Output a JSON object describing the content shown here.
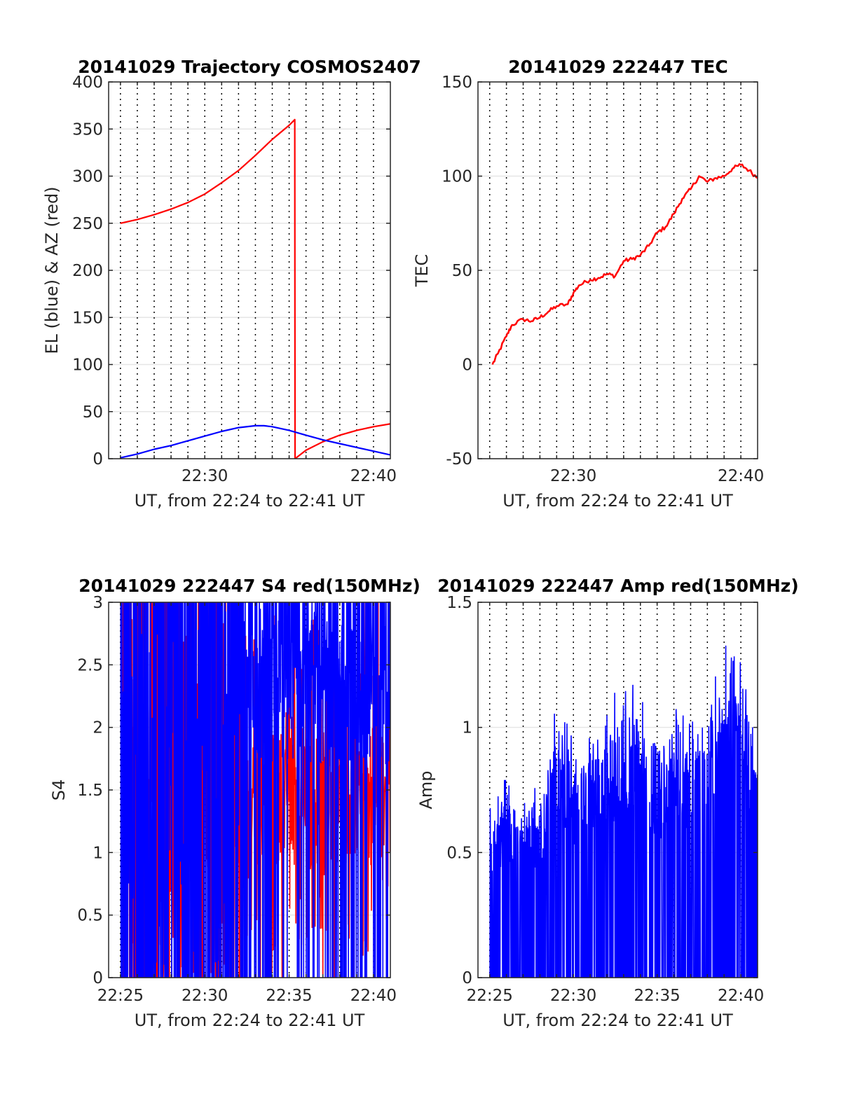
{
  "chart_data": [
    {
      "type": "line",
      "title": "20141029 Trajectory COSMOS2407",
      "xlabel": "UT, from 22:24 to 22:41 UT",
      "ylabel": "EL (blue) & AZ (red)",
      "xlim": [
        "22:24:18",
        "22:41:00"
      ],
      "ylim": [
        0,
        400
      ],
      "xticks": [
        "22:30",
        "22:40"
      ],
      "yticks": [
        0,
        50,
        100,
        150,
        200,
        250,
        300,
        350,
        400
      ],
      "grid": true,
      "series": [
        {
          "color": "#ff0000",
          "x": [
            "22:25:00",
            "22:26:00",
            "22:27:00",
            "22:28:00",
            "22:29:00",
            "22:30:00",
            "22:31:00",
            "22:32:00",
            "22:33:00",
            "22:34:00",
            "22:35:00",
            "22:35:20",
            "22:35:21",
            "22:36:00",
            "22:37:00",
            "22:38:00",
            "22:39:00",
            "22:40:00",
            "22:41:00"
          ],
          "values": [
            250,
            254,
            259,
            265,
            272,
            281,
            293,
            306,
            322,
            339,
            354,
            360,
            0,
            9,
            18,
            25,
            30,
            34,
            37
          ]
        },
        {
          "color": "#0000ff",
          "x": [
            "22:25:00",
            "22:26:00",
            "22:27:00",
            "22:28:00",
            "22:29:00",
            "22:30:00",
            "22:31:00",
            "22:32:00",
            "22:33:00",
            "22:33:30",
            "22:34:00",
            "22:35:00",
            "22:36:00",
            "22:37:00",
            "22:38:00",
            "22:39:00",
            "22:40:00",
            "22:41:00"
          ],
          "values": [
            1,
            5,
            10,
            14,
            19,
            24,
            29,
            33,
            35,
            35,
            34,
            30,
            25,
            20,
            16,
            12,
            8,
            4
          ]
        }
      ]
    },
    {
      "type": "line",
      "title": "20141029 222447 TEC",
      "xlabel": "UT, from 22:24 to 22:41 UT",
      "ylabel": "TEC",
      "xlim": [
        "22:24:18",
        "22:41:00"
      ],
      "ylim": [
        -50,
        150
      ],
      "xticks": [
        "22:30",
        "22:40"
      ],
      "yticks": [
        -50,
        0,
        50,
        100,
        150
      ],
      "grid": true,
      "series": [
        {
          "color": "#ff0000",
          "x": [
            "22:25:10",
            "22:25:30",
            "22:26:00",
            "22:26:20",
            "22:27:00",
            "22:27:30",
            "22:28:00",
            "22:28:30",
            "22:29:00",
            "22:29:40",
            "22:30:00",
            "22:30:20",
            "22:31:00",
            "22:31:30",
            "22:32:00",
            "22:32:30",
            "22:33:00",
            "22:33:30",
            "22:34:00",
            "22:34:30",
            "22:35:00",
            "22:35:30",
            "22:36:00",
            "22:36:30",
            "22:37:00",
            "22:37:30",
            "22:38:00",
            "22:38:30",
            "22:39:00",
            "22:39:30",
            "22:40:00",
            "22:40:30",
            "22:41:00"
          ],
          "values": [
            0,
            6,
            15,
            21,
            24,
            23,
            25,
            28,
            31,
            32,
            38,
            42,
            45,
            46,
            48,
            47,
            55,
            56,
            58,
            63,
            70,
            73,
            80,
            88,
            93,
            100,
            97,
            99,
            100,
            104,
            106,
            103,
            99
          ]
        }
      ]
    },
    {
      "type": "line",
      "title": "20141029 222447 S4 red(150MHz)",
      "xlabel": "UT, from 22:24 to 22:41 UT",
      "ylabel": "S4",
      "xlim": [
        "22:24:18",
        "22:41:00"
      ],
      "ylim": [
        0,
        3
      ],
      "xticks": [
        "22:25",
        "22:30",
        "22:35",
        "22:40"
      ],
      "yticks": [
        0,
        0.5,
        1,
        1.5,
        2,
        2.5,
        3
      ],
      "grid": true,
      "series": [
        {
          "color": "#ff0000",
          "x_range": [
            "22:25:00",
            "22:41:00"
          ],
          "typical_range": [
            0.5,
            3
          ]
        },
        {
          "color": "#0000ff",
          "x_range": [
            "22:25:00",
            "22:41:00"
          ],
          "typical_range": [
            0,
            3
          ]
        }
      ]
    },
    {
      "type": "line",
      "title": "20141029 222447 Amp red(150MHz)",
      "xlabel": "UT, from 22:24 to 22:41 UT",
      "ylabel": "Amp",
      "xlim": [
        "22:24:18",
        "22:41:00"
      ],
      "ylim": [
        0,
        1.5
      ],
      "xticks": [
        "22:25",
        "22:30",
        "22:35",
        "22:40"
      ],
      "yticks": [
        0,
        0.5,
        1,
        1.5
      ],
      "grid": true,
      "series": [
        {
          "color": "#0000ff",
          "x": [
            "22:25:00",
            "22:26:00",
            "22:27:00",
            "22:28:00",
            "22:29:00",
            "22:30:00",
            "22:31:00",
            "22:32:00",
            "22:33:00",
            "22:34:00",
            "22:35:00",
            "22:36:00",
            "22:37:00",
            "22:38:00",
            "22:39:00",
            "22:40:00",
            "22:41:00"
          ],
          "peak_values": [
            0.68,
            0.83,
            0.77,
            0.78,
            1.13,
            0.96,
            1.02,
            1.06,
            1.24,
            1.17,
            0.92,
            1.08,
            1.06,
            1.09,
            1.35,
            1.31,
            0.99
          ]
        }
      ]
    }
  ]
}
